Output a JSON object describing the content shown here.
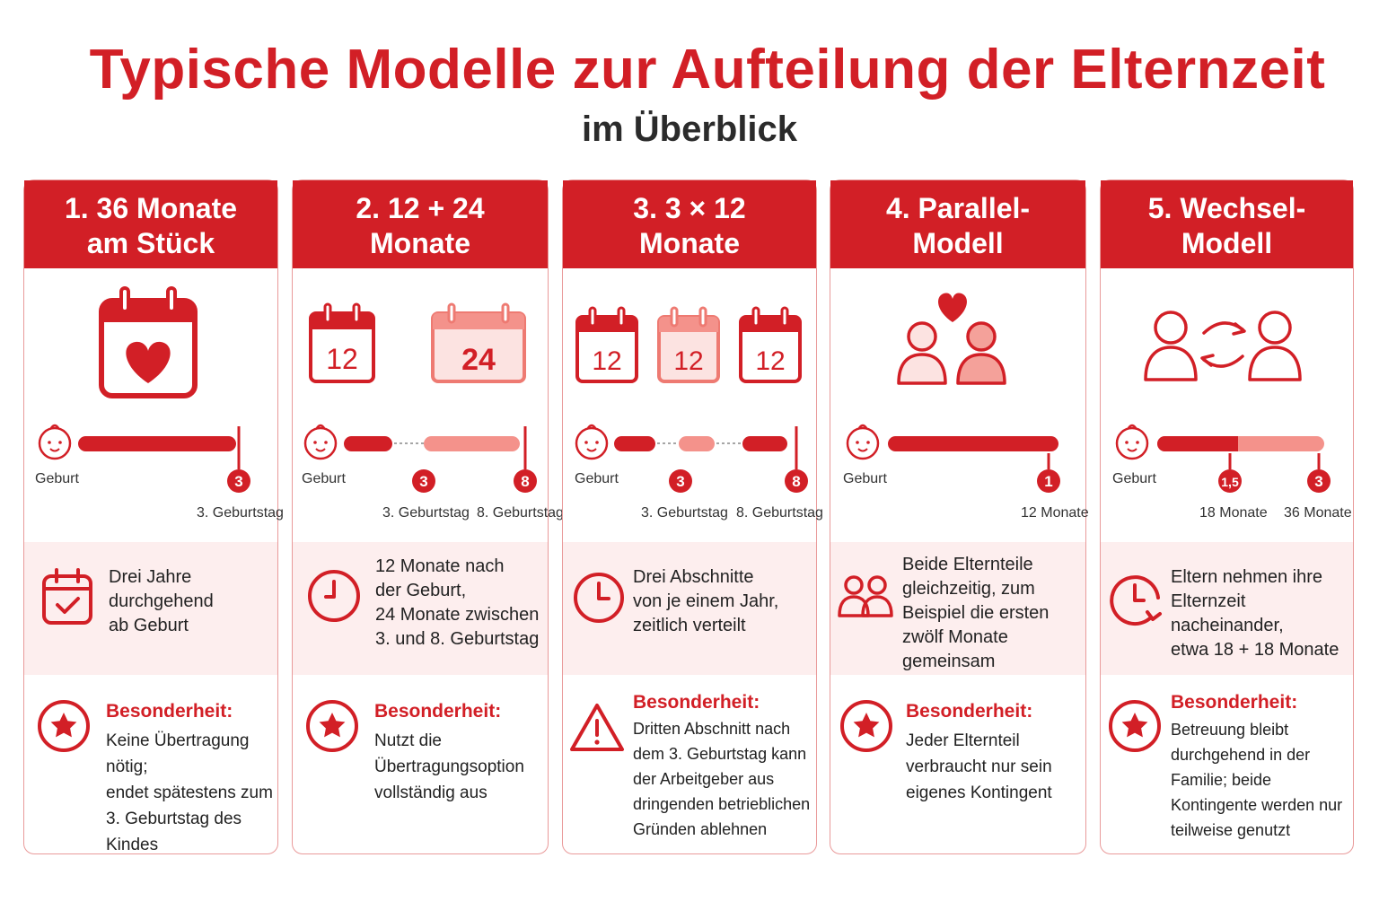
{
  "title": "Typische Modelle zur Aufteilung der Elternzeit",
  "subtitle": "im Überblick",
  "colors": {
    "accent": "#d21f26",
    "light": "#f4928b",
    "tint": "#fdeeee"
  },
  "cards": [
    {
      "head": [
        "1. 36 Monate",
        "am Stück"
      ],
      "icon": "calendar-heart-icon",
      "timeline": {
        "start": "Geburt",
        "markers": [
          {
            "num": "3",
            "label": "3. Geburtstag"
          }
        ]
      },
      "desc_icon": "calendar-check-icon",
      "desc": [
        "Drei Jahre",
        "durchgehend",
        "ab Geburt"
      ],
      "special_icon": "star-icon",
      "special_label": "Besonderheit:",
      "special": [
        "Keine Übertragung nötig;",
        "endet spätestens zum",
        "3. Geburtstag des Kindes"
      ]
    },
    {
      "head": [
        "2. 12 + 24",
        "Monate"
      ],
      "icon": "two-calendars-icon",
      "calendars": [
        "12",
        "24"
      ],
      "timeline": {
        "start": "Geburt",
        "markers": [
          {
            "num": "3",
            "label": "3. Geburtstag"
          },
          {
            "num": "8",
            "label": "8. Geburtstag"
          }
        ]
      },
      "desc_icon": "clock-icon",
      "desc": [
        "12 Monate nach",
        "der Geburt,",
        "24 Monate zwischen",
        "3. und 8. Geburtstag"
      ],
      "special_icon": "star-icon",
      "special_label": "Besonderheit:",
      "special": [
        "Nutzt die",
        "Übertragungsoption",
        "vollständig aus"
      ]
    },
    {
      "head": [
        "3. 3 × 12",
        "Monate"
      ],
      "icon": "three-calendars-icon",
      "calendars": [
        "12",
        "12",
        "12"
      ],
      "timeline": {
        "start": "Geburt",
        "markers": [
          {
            "num": "3",
            "label": "3. Geburtstag"
          },
          {
            "num": "8",
            "label": "8. Geburtstag"
          }
        ]
      },
      "desc_icon": "clock-icon",
      "desc": [
        "Drei Abschnitte",
        "von je einem Jahr,",
        "zeitlich verteilt"
      ],
      "special_icon": "warning-icon",
      "special_label": "Besonderheit:",
      "special": [
        "Dritten Abschnitt nach",
        "dem 3. Geburtstag kann",
        "der Arbeitgeber aus",
        "dringenden betrieblichen",
        "Gründen ablehnen"
      ]
    },
    {
      "head": [
        "4. Parallel-",
        "Modell"
      ],
      "icon": "parents-heart-icon",
      "timeline": {
        "start": "Geburt",
        "markers": [
          {
            "num": "1",
            "label": "12 Monate"
          }
        ]
      },
      "desc_icon": "two-people-icon",
      "desc": [
        "Beide Elternteile",
        "gleichzeitig, zum",
        "Beispiel die ersten",
        "zwölf Monate",
        "gemeinsam"
      ],
      "special_icon": "star-icon",
      "special_label": "Besonderheit:",
      "special": [
        "Jeder Elternteil",
        "verbraucht nur sein",
        "eigenes Kontingent"
      ]
    },
    {
      "head": [
        "5. Wechsel-",
        "Modell"
      ],
      "icon": "parents-swap-icon",
      "timeline": {
        "start": "Geburt",
        "markers": [
          {
            "num": "1,5",
            "label": "18 Monate"
          },
          {
            "num": "3",
            "label": "36 Monate"
          }
        ]
      },
      "desc_icon": "clock-arrow-icon",
      "desc": [
        "Eltern nehmen ihre",
        "Elternzeit nacheinander,",
        "etwa 18 + 18 Monate"
      ],
      "special_icon": "star-icon",
      "special_label": "Besonderheit:",
      "special": [
        "Betreuung bleibt",
        "durchgehend in der",
        "Familie; beide",
        "Kontingente werden nur",
        "teilweise genutzt"
      ]
    }
  ]
}
